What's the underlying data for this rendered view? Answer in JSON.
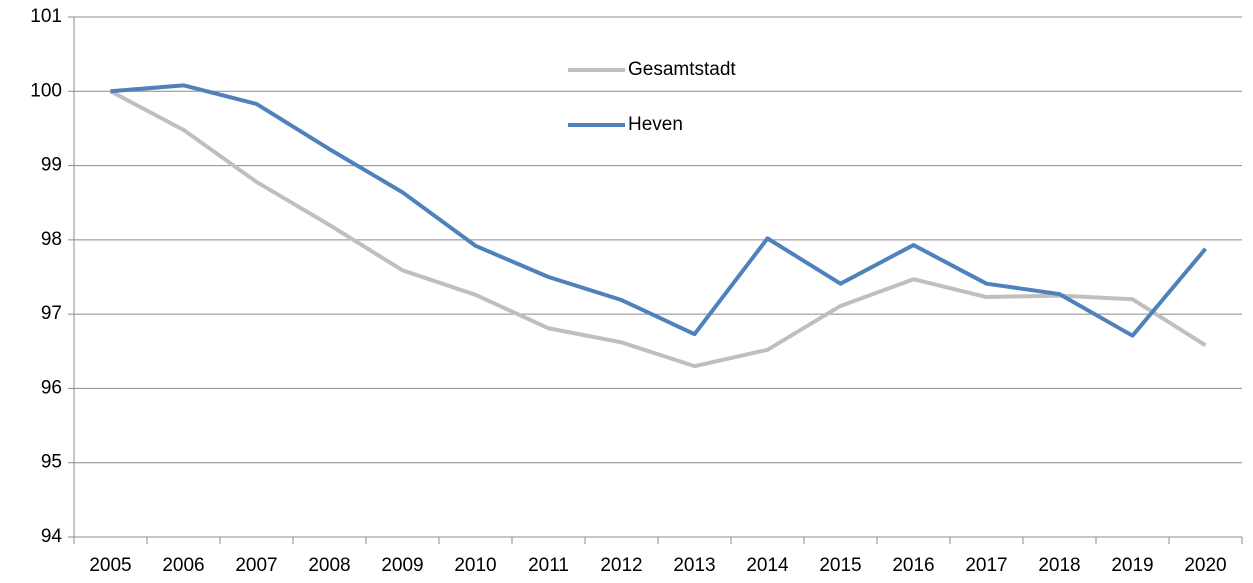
{
  "chart_data": {
    "type": "line",
    "categories": [
      "2005",
      "2006",
      "2007",
      "2008",
      "2009",
      "2010",
      "2011",
      "2012",
      "2013",
      "2014",
      "2015",
      "2016",
      "2017",
      "2018",
      "2019",
      "2020"
    ],
    "series": [
      {
        "name": "Gesamtstadt",
        "color": "#bfbfbf",
        "values": [
          100,
          99.48,
          98.78,
          98.2,
          97.59,
          97.26,
          96.81,
          96.62,
          96.3,
          96.52,
          97.11,
          97.47,
          97.23,
          97.25,
          97.2,
          96.58
        ]
      },
      {
        "name": "Heven",
        "color": "#4f81bd",
        "values": [
          100,
          100.08,
          99.83,
          99.22,
          98.64,
          97.92,
          97.5,
          97.19,
          96.73,
          98.02,
          97.41,
          97.93,
          97.41,
          97.27,
          96.71,
          97.88
        ]
      }
    ],
    "ylim": [
      94,
      101
    ],
    "yticks": [
      94,
      95,
      96,
      97,
      98,
      99,
      100,
      101
    ],
    "grid": true
  }
}
